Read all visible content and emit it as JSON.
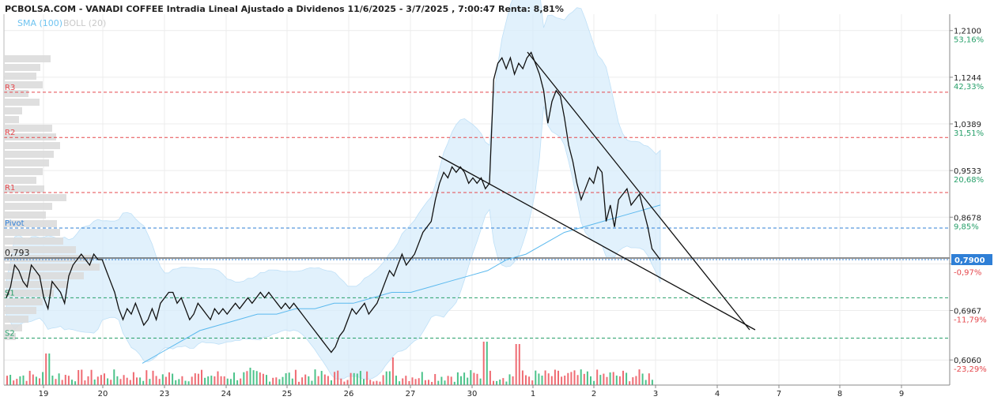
{
  "header": {
    "title": "PCBOLSA.COM - VANADI COFFEE Intradia Lineal Ajustado a Dividenos 11/6/2025 - 3/7/2025 , 7:00:47 Renta: 8,81%",
    "legend_sma": "SMA (100)",
    "legend_boll": "BOLL (20)"
  },
  "colors": {
    "price_line": "#111111",
    "sma": "#5bb9ee",
    "boll_fill": "#d7ecfb",
    "volume_up": "#4cc38a",
    "volume_down": "#ef6b73",
    "resistance": "#e5484d",
    "pivot": "#2f7fd6",
    "support": "#27a06a",
    "current_price_box": "#2f7fd6",
    "volume_profile": "#dcdcdc"
  },
  "chart_data": {
    "type": "line",
    "ylim": [
      0.56,
      1.24
    ],
    "y_ticks": [
      {
        "price": "1,2100",
        "pct": "53,16%",
        "value": 1.21,
        "neg": false
      },
      {
        "price": "1,1244",
        "pct": "42,33%",
        "value": 1.1244,
        "neg": false
      },
      {
        "price": "1,0389",
        "pct": "31,51%",
        "value": 1.0389,
        "neg": false
      },
      {
        "price": "0,9533",
        "pct": "20,68%",
        "value": 0.9533,
        "neg": false
      },
      {
        "price": "0,8678",
        "pct": "9,85%",
        "value": 0.8678,
        "neg": false
      },
      {
        "price": "",
        "pct": "-0,97%",
        "value": 0.7822,
        "neg": true
      },
      {
        "price": "0,6967",
        "pct": "-11,79%",
        "value": 0.6967,
        "neg": true
      },
      {
        "price": "0,6060",
        "pct": "-23,29%",
        "value": 0.606,
        "neg": true
      }
    ],
    "x_ticks": [
      "19",
      "20",
      "23",
      "24",
      "25",
      "26",
      "27",
      "30",
      "1",
      "2",
      "3",
      "4",
      "7",
      "8",
      "9"
    ],
    "levels": [
      {
        "name": "R3",
        "value": 1.097,
        "kind": "resistance"
      },
      {
        "name": "R2",
        "value": 1.014,
        "kind": "resistance"
      },
      {
        "name": "R1",
        "value": 0.913,
        "kind": "resistance"
      },
      {
        "name": "Pivot",
        "value": 0.848,
        "kind": "pivot"
      },
      {
        "name": "S1",
        "value": 0.72,
        "kind": "support"
      },
      {
        "name": "S2",
        "value": 0.646,
        "kind": "support"
      }
    ],
    "marker": {
      "label": "0,793",
      "value": 0.793
    },
    "current_price": {
      "label": "0,7900",
      "value": 0.79
    },
    "series": [
      {
        "values": [
          0.72,
          0.74,
          0.78,
          0.77,
          0.75,
          0.74,
          0.78,
          0.77,
          0.76,
          0.72,
          0.7,
          0.75,
          0.74,
          0.73,
          0.71,
          0.76,
          0.78,
          0.79,
          0.8,
          0.79,
          0.78,
          0.8,
          0.79,
          0.79,
          0.77,
          0.75,
          0.73,
          0.7,
          0.68,
          0.7,
          0.69,
          0.71,
          0.69,
          0.67,
          0.68,
          0.7,
          0.68,
          0.71,
          0.72,
          0.73,
          0.73,
          0.71,
          0.72,
          0.7,
          0.68,
          0.69,
          0.71,
          0.7,
          0.69,
          0.68,
          0.7,
          0.69,
          0.7,
          0.69,
          0.7,
          0.71,
          0.7,
          0.71,
          0.72,
          0.71,
          0.72,
          0.73,
          0.72,
          0.73,
          0.72,
          0.71,
          0.7,
          0.71,
          0.7,
          0.71,
          0.7,
          0.69,
          0.68,
          0.67,
          0.66,
          0.65,
          0.64,
          0.63,
          0.62,
          0.63,
          0.65,
          0.66,
          0.68,
          0.7,
          0.69,
          0.7,
          0.71,
          0.69,
          0.7,
          0.71,
          0.73,
          0.75,
          0.77,
          0.76,
          0.78,
          0.8,
          0.78,
          0.79,
          0.8,
          0.82,
          0.84,
          0.85,
          0.86,
          0.9,
          0.93,
          0.95,
          0.94,
          0.96,
          0.95,
          0.96,
          0.95,
          0.93,
          0.94,
          0.93,
          0.94,
          0.92,
          0.93,
          1.12,
          1.15,
          1.16,
          1.14,
          1.16,
          1.13,
          1.15,
          1.14,
          1.16,
          1.17,
          1.15,
          1.13,
          1.1,
          1.04,
          1.08,
          1.1,
          1.09,
          1.05,
          1.0,
          0.97,
          0.93,
          0.9,
          0.92,
          0.94,
          0.93,
          0.96,
          0.95,
          0.86,
          0.89,
          0.85,
          0.9,
          0.91,
          0.92,
          0.89,
          0.9,
          0.91,
          0.88,
          0.85,
          0.81,
          0.8,
          0.79
        ]
      },
      {
        "name": "SMA (100)",
        "values": [
          0.6,
          0.62,
          0.64,
          0.66,
          0.67,
          0.68,
          0.69,
          0.69,
          0.7,
          0.7,
          0.71,
          0.71,
          0.72,
          0.73,
          0.73,
          0.74,
          0.75,
          0.76,
          0.77,
          0.79,
          0.8,
          0.82,
          0.84,
          0.85,
          0.86,
          0.87,
          0.88,
          0.89
        ]
      }
    ]
  }
}
